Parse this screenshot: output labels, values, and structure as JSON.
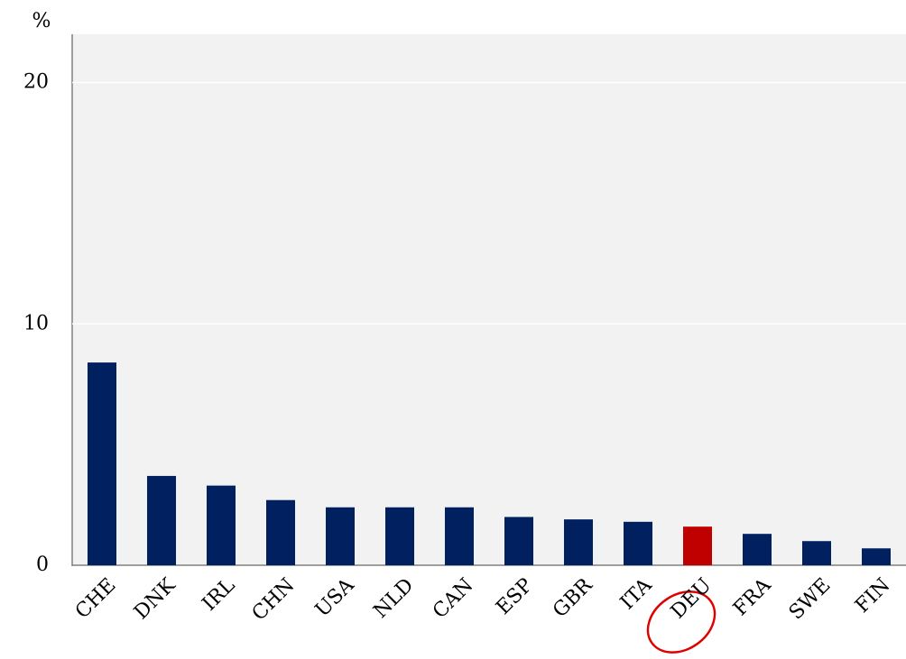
{
  "chart_data": {
    "type": "bar",
    "y_label": "%",
    "categories": [
      "CHE",
      "DNK",
      "IRL",
      "CHN",
      "USA",
      "NLD",
      "CAN",
      "ESP",
      "GBR",
      "ITA",
      "DEU",
      "FRA",
      "SWE",
      "FIN"
    ],
    "values": [
      8.4,
      3.7,
      3.3,
      2.7,
      2.4,
      2.4,
      2.4,
      2.0,
      1.9,
      1.8,
      1.6,
      1.3,
      1.0,
      0.7
    ],
    "colors": [
      "#002060",
      "#002060",
      "#002060",
      "#002060",
      "#002060",
      "#002060",
      "#002060",
      "#002060",
      "#002060",
      "#002060",
      "#c00000",
      "#002060",
      "#002060",
      "#002060"
    ],
    "ylim": [
      0,
      22
    ],
    "yticks": [
      0,
      10,
      20
    ],
    "grid": true
  }
}
